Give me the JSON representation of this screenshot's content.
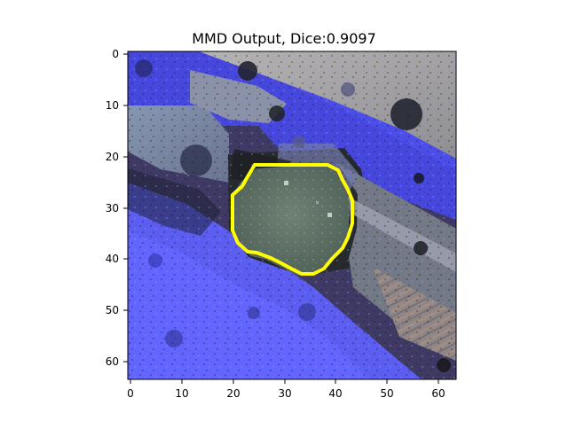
{
  "figure": {
    "title": "MMD Output, Dice:0.9097"
  },
  "plot": {
    "x_ticks": [
      "0",
      "10",
      "20",
      "30",
      "40",
      "50",
      "60"
    ],
    "y_ticks": [
      "0",
      "10",
      "20",
      "30",
      "40",
      "50",
      "60"
    ],
    "image_extent": [
      64,
      64
    ],
    "contour_color": "#ffff00",
    "overlay_color": "#4a4cff",
    "contour_points": [
      [
        29,
        22
      ],
      [
        37,
        22
      ],
      [
        40,
        23
      ],
      [
        41,
        25
      ],
      [
        42,
        27
      ],
      [
        43,
        29
      ],
      [
        43,
        33
      ],
      [
        42,
        36
      ],
      [
        41,
        38
      ],
      [
        39,
        40
      ],
      [
        38,
        42
      ],
      [
        36,
        43
      ],
      [
        33,
        43
      ],
      [
        31,
        42
      ],
      [
        29,
        41
      ],
      [
        27,
        40
      ],
      [
        25,
        39
      ],
      [
        23,
        39
      ],
      [
        21,
        37
      ],
      [
        20,
        34
      ],
      [
        20,
        28
      ],
      [
        22,
        26
      ],
      [
        24,
        25
      ],
      [
        26,
        24
      ],
      [
        28,
        23
      ]
    ]
  }
}
